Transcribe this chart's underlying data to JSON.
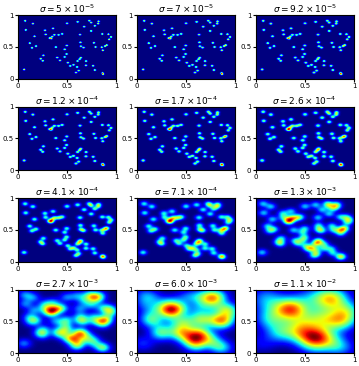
{
  "sigmas": [
    "5 \\times 10^{-5}",
    "7 \\times 10^{-5}",
    "9.2 \\times 10^{-5}",
    "1.2 \\times 10^{-4}",
    "1.7 \\times 10^{-4}",
    "2.6 \\times 10^{-4}",
    "4.1 \\times 10^{-4}",
    "7.1 \\times 10^{-4}",
    "1.3 \\times 10^{-3}",
    "2.7 \\times 10^{-3}",
    "6.0 \\times 10^{-3}",
    "1.1 \\times 10^{-2}"
  ],
  "sigma_values": [
    5e-05,
    7e-05,
    9.2e-05,
    0.00012,
    0.00017,
    0.00026,
    0.00041,
    0.00071,
    0.0013,
    0.0027,
    0.006,
    0.011
  ],
  "nrows": 4,
  "ncols": 3,
  "xlim": [
    0,
    1
  ],
  "ylim": [
    0,
    1
  ],
  "xticks": [
    0,
    0.5,
    1
  ],
  "ytick_vals": [
    0,
    0.5,
    1
  ],
  "ytick_labels": [
    "0",
    "0.5",
    "1"
  ],
  "xtick_labels": [
    "0",
    "0.5",
    "1"
  ],
  "title_fontsize": 6.5,
  "tick_fontsize": 5,
  "figsize": [
    3.59,
    3.66
  ],
  "dpi": 100
}
